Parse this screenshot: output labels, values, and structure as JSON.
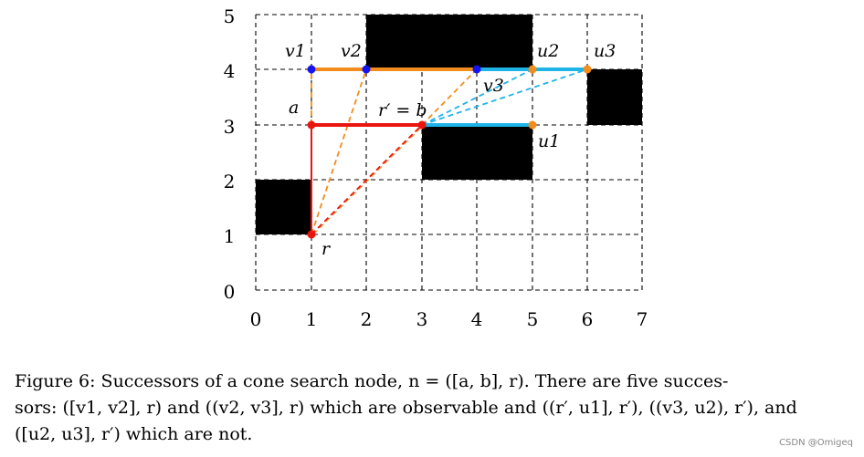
{
  "diagram": {
    "x_ticks": [
      "0",
      "1",
      "2",
      "3",
      "4",
      "5",
      "6",
      "7"
    ],
    "y_ticks": [
      "0",
      "1",
      "2",
      "3",
      "4",
      "5"
    ],
    "point_labels": {
      "v1": "v1",
      "v2": "v2",
      "u2": "u2",
      "u3": "u3",
      "a": "a",
      "r_prime_eq_b": "r′ = b",
      "v3": "v3",
      "u1": "u1",
      "r": "r"
    },
    "colors": {
      "obstacle": "#000000",
      "red": "#e8160e",
      "orange": "#f28c1c",
      "cyan": "#1fb4e8",
      "blue": "#1414f0",
      "grid": "#000000"
    },
    "obstacles": [
      {
        "x0": 0,
        "y0": 1,
        "x1": 1,
        "y1": 2
      },
      {
        "x0": 2,
        "y0": 4,
        "x1": 5,
        "y1": 5
      },
      {
        "x0": 6,
        "y0": 3,
        "x1": 7,
        "y1": 4
      },
      {
        "x0": 3,
        "y0": 2,
        "x1": 5,
        "y1": 3
      }
    ]
  },
  "caption": {
    "line1": "Figure 6:  Successors of a cone search node, n = ([a, b], r).  There are five succes-",
    "line2": "sors: ([v1, v2], r) and ((v2, v3], r) which are observable and ((r′, u1], r′), ((v3, u2), r′), and",
    "line3": "([u2, u3], r′) which are not."
  },
  "watermark": "CSDN @Omigeq"
}
